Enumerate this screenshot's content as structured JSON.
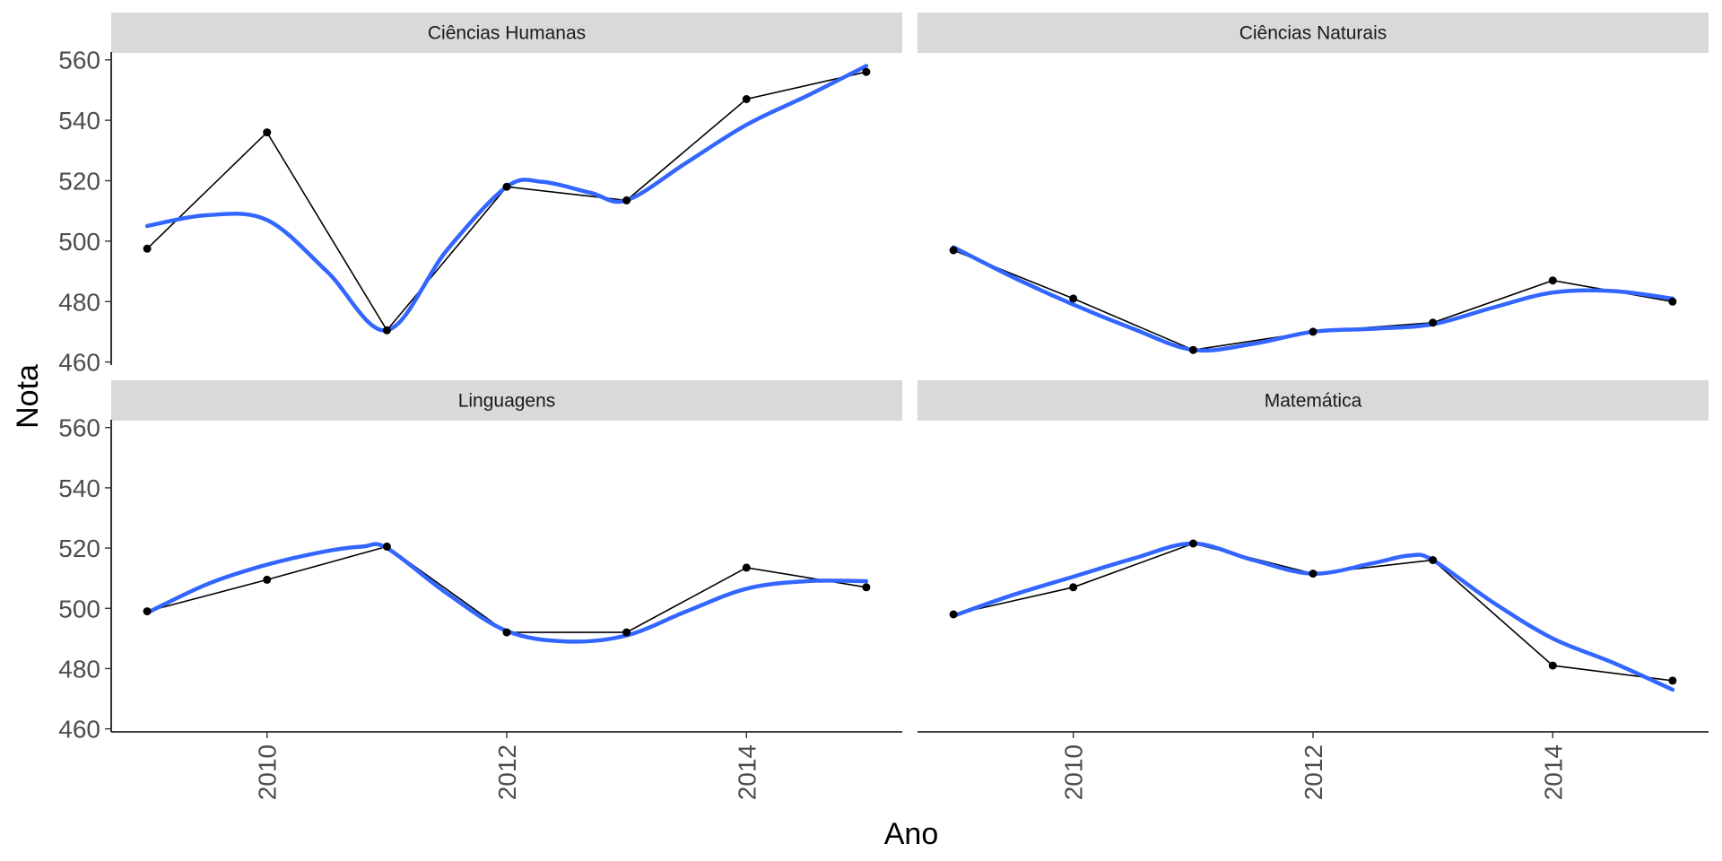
{
  "chart_data": {
    "type": "line",
    "layout": "facet_wrap 2x2",
    "xlabel": "Ano",
    "ylabel": "Nota",
    "x": [
      2009,
      2010,
      2011,
      2012,
      2013,
      2014,
      2015
    ],
    "xlim": [
      2008.7,
      2015.3
    ],
    "ylim": [
      459,
      562
    ],
    "x_ticks": [
      2010,
      2012,
      2014
    ],
    "y_ticks": [
      460,
      480,
      500,
      520,
      540,
      560
    ],
    "grid": false,
    "colors": {
      "line": "#000000",
      "point": "#000000",
      "smooth": "#3366FF",
      "strip": "#D9D9D9"
    },
    "panels": [
      {
        "title": "Ciências Humanas",
        "values": [
          497.5,
          536,
          470.5,
          518,
          513.5,
          547,
          556
        ],
        "smooth": [
          [
            2009,
            505
          ],
          [
            2009.5,
            508.6
          ],
          [
            2010,
            507
          ],
          [
            2010.5,
            490
          ],
          [
            2011,
            470.5
          ],
          [
            2011.5,
            497
          ],
          [
            2012,
            518
          ],
          [
            2012.3,
            519.6
          ],
          [
            2012.7,
            516
          ],
          [
            2013,
            513.5
          ],
          [
            2013.5,
            526
          ],
          [
            2014,
            538.5
          ],
          [
            2014.5,
            548
          ],
          [
            2015,
            558
          ]
        ]
      },
      {
        "title": "Ciências Naturais",
        "values": [
          497,
          481,
          464,
          470,
          473,
          487,
          480
        ],
        "smooth": [
          [
            2009,
            498
          ],
          [
            2009.5,
            488
          ],
          [
            2010,
            479
          ],
          [
            2010.5,
            471
          ],
          [
            2011,
            464
          ],
          [
            2011.5,
            466
          ],
          [
            2012,
            470
          ],
          [
            2012.5,
            471
          ],
          [
            2013,
            472.5
          ],
          [
            2013.5,
            478
          ],
          [
            2014,
            483
          ],
          [
            2014.5,
            483.5
          ],
          [
            2015,
            481
          ]
        ]
      },
      {
        "title": "Linguagens",
        "values": [
          499,
          509.5,
          520.5,
          492,
          492,
          513.5,
          507
        ],
        "smooth": [
          [
            2009,
            498.5
          ],
          [
            2009.5,
            508
          ],
          [
            2010,
            514.5
          ],
          [
            2010.5,
            519
          ],
          [
            2010.8,
            520.5
          ],
          [
            2011,
            520
          ],
          [
            2011.5,
            505
          ],
          [
            2012,
            492.5
          ],
          [
            2012.5,
            489
          ],
          [
            2013,
            491
          ],
          [
            2013.5,
            499
          ],
          [
            2014,
            506.5
          ],
          [
            2014.5,
            509
          ],
          [
            2015,
            509
          ]
        ]
      },
      {
        "title": "Matemática",
        "values": [
          498,
          507,
          521.5,
          511.5,
          516,
          481,
          476
        ],
        "smooth": [
          [
            2009,
            497.5
          ],
          [
            2009.5,
            504.5
          ],
          [
            2010,
            510.5
          ],
          [
            2010.5,
            516.5
          ],
          [
            2011,
            521.5
          ],
          [
            2011.5,
            516
          ],
          [
            2012,
            511.5
          ],
          [
            2012.5,
            515
          ],
          [
            2012.8,
            517.5
          ],
          [
            2013,
            516
          ],
          [
            2013.5,
            502
          ],
          [
            2014,
            490
          ],
          [
            2014.5,
            482
          ],
          [
            2015,
            473
          ]
        ]
      }
    ]
  }
}
